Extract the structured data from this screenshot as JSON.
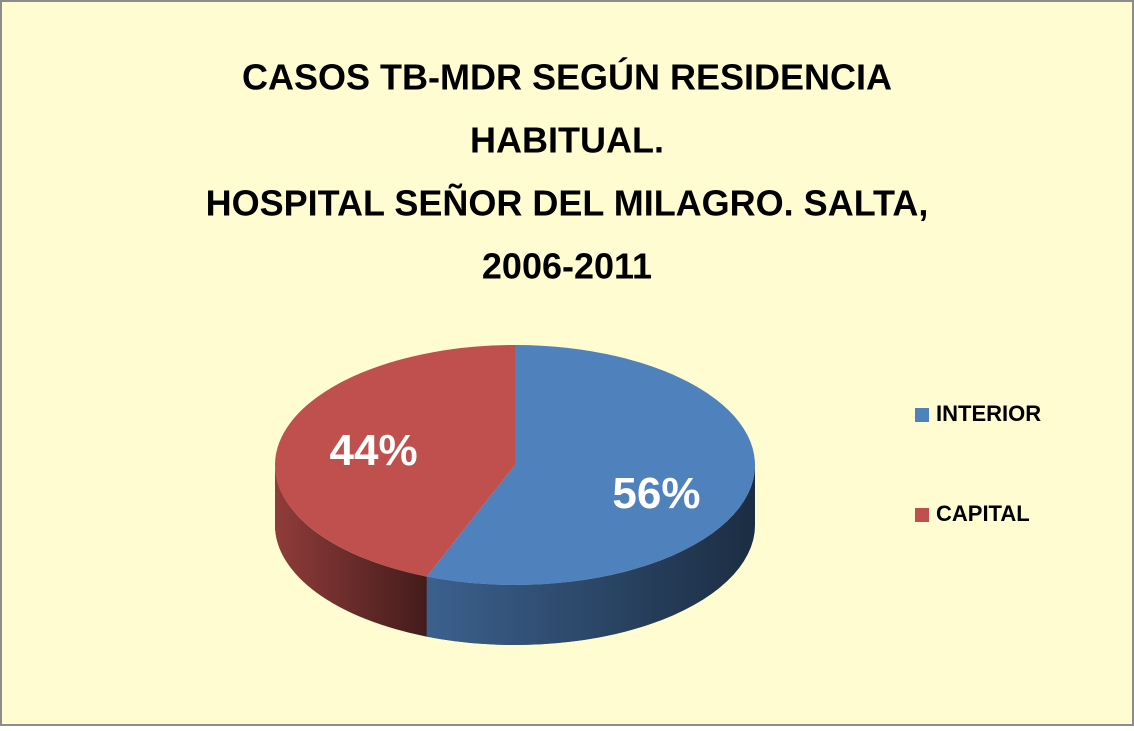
{
  "chart_data": {
    "type": "pie",
    "title": [
      "CASOS TB-MDR SEGÚN RESIDENCIA",
      "HABITUAL.",
      "HOSPITAL SEÑOR DEL MILAGRO. SALTA,",
      "2006-2011"
    ],
    "categories": [
      "INTERIOR",
      "CAPITAL"
    ],
    "values": [
      56,
      44
    ],
    "value_labels": [
      "56%",
      "44%"
    ],
    "colors": [
      "#4f81bd",
      "#c0504d"
    ],
    "legend": "right"
  }
}
